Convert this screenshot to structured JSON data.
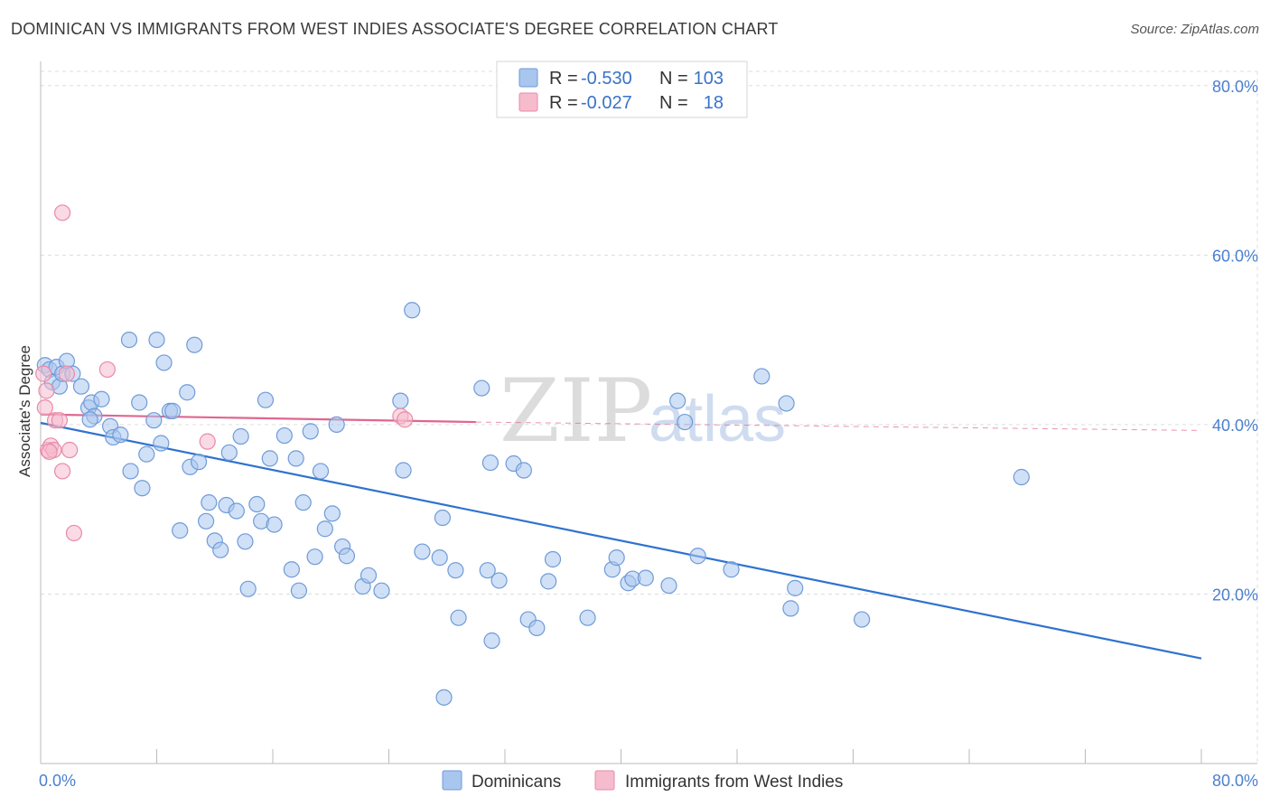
{
  "title": "DOMINICAN VS IMMIGRANTS FROM WEST INDIES ASSOCIATE'S DEGREE CORRELATION CHART",
  "source": "Source: ZipAtlas.com",
  "watermark": {
    "zip": "ZIP",
    "atlas": "atlas"
  },
  "legend": {
    "rows": [
      {
        "r_label": "R =",
        "r_value": "-0.530",
        "n_label": "N =",
        "n_value": "103"
      },
      {
        "r_label": "R =",
        "r_value": "-0.027",
        "n_label": "N =",
        "n_value": "18"
      }
    ]
  },
  "bottom_legend": {
    "series1": "Dominicans",
    "series2": "Immigrants from West Indies"
  },
  "colors": {
    "blue_fill": "#a9c6ee",
    "blue_stroke": "#6f9bd8",
    "blue_line": "#2f72cf",
    "pink_fill": "#f6bcce",
    "pink_stroke": "#e98aa8",
    "pink_line": "#e0668f",
    "grid": "#dddddd",
    "axis_label": "#4a7fd0"
  },
  "chart_data": {
    "type": "scatter",
    "title": "DOMINICAN VS IMMIGRANTS FROM WEST INDIES ASSOCIATE'S DEGREE CORRELATION CHART",
    "xlabel": "",
    "ylabel": "Associate's Degree",
    "xlim": [
      0,
      80
    ],
    "ylim": [
      0,
      82
    ],
    "x_tick_labels": [
      "0.0%",
      "80.0%"
    ],
    "y_ticks": [
      20,
      40,
      60,
      80
    ],
    "y_tick_labels": [
      "20.0%",
      "40.0%",
      "60.0%",
      "80.0%"
    ],
    "grid": true,
    "legend_position": "top-center",
    "series": [
      {
        "name": "Dominicans",
        "r": -0.53,
        "n": 103,
        "trend": {
          "x0": 0,
          "y0": 40.2,
          "x1": 80,
          "y1": 12.4
        },
        "points": [
          [
            0.3,
            47
          ],
          [
            0.6,
            46.5
          ],
          [
            0.8,
            45
          ],
          [
            1.1,
            46.8
          ],
          [
            1.3,
            44.5
          ],
          [
            1.5,
            46
          ],
          [
            1.8,
            47.5
          ],
          [
            2.2,
            46
          ],
          [
            2.8,
            44.5
          ],
          [
            3.3,
            42
          ],
          [
            3.5,
            42.6
          ],
          [
            4.2,
            43
          ],
          [
            3.7,
            41
          ],
          [
            3.4,
            40.6
          ],
          [
            4.8,
            39.8
          ],
          [
            5.0,
            38.5
          ],
          [
            5.5,
            38.8
          ],
          [
            6.1,
            50
          ],
          [
            6.2,
            34.5
          ],
          [
            6.8,
            42.6
          ],
          [
            7.0,
            32.5
          ],
          [
            7.3,
            36.5
          ],
          [
            7.8,
            40.5
          ],
          [
            8.0,
            50
          ],
          [
            8.3,
            37.8
          ],
          [
            8.5,
            47.3
          ],
          [
            8.9,
            41.6
          ],
          [
            9.1,
            41.6
          ],
          [
            9.6,
            27.5
          ],
          [
            10.1,
            43.8
          ],
          [
            10.3,
            35
          ],
          [
            10.6,
            49.4
          ],
          [
            10.9,
            35.6
          ],
          [
            11.4,
            28.6
          ],
          [
            11.6,
            30.8
          ],
          [
            12.0,
            26.3
          ],
          [
            12.4,
            25.2
          ],
          [
            12.8,
            30.5
          ],
          [
            13.0,
            36.7
          ],
          [
            13.5,
            29.8
          ],
          [
            13.8,
            38.6
          ],
          [
            14.1,
            26.2
          ],
          [
            14.3,
            20.6
          ],
          [
            14.9,
            30.6
          ],
          [
            15.2,
            28.6
          ],
          [
            15.5,
            42.9
          ],
          [
            15.8,
            36
          ],
          [
            16.1,
            28.2
          ],
          [
            16.8,
            38.7
          ],
          [
            17.3,
            22.9
          ],
          [
            17.6,
            36
          ],
          [
            17.8,
            20.4
          ],
          [
            18.1,
            30.8
          ],
          [
            18.6,
            39.2
          ],
          [
            18.9,
            24.4
          ],
          [
            19.3,
            34.5
          ],
          [
            19.6,
            27.7
          ],
          [
            20.1,
            29.5
          ],
          [
            20.4,
            40
          ],
          [
            20.8,
            25.6
          ],
          [
            21.1,
            24.5
          ],
          [
            22.2,
            20.9
          ],
          [
            22.6,
            22.2
          ],
          [
            23.5,
            20.4
          ],
          [
            24.8,
            42.8
          ],
          [
            25.0,
            34.6
          ],
          [
            25.6,
            53.5
          ],
          [
            26.3,
            25
          ],
          [
            27.5,
            24.3
          ],
          [
            27.7,
            29
          ],
          [
            28.6,
            22.8
          ],
          [
            28.8,
            17.2
          ],
          [
            30.4,
            44.3
          ],
          [
            30.8,
            22.8
          ],
          [
            31.0,
            35.5
          ],
          [
            31.1,
            14.5
          ],
          [
            31.6,
            21.6
          ],
          [
            32.6,
            35.4
          ],
          [
            33.3,
            34.6
          ],
          [
            33.6,
            17
          ],
          [
            34.2,
            16
          ],
          [
            35.0,
            21.5
          ],
          [
            35.3,
            24.1
          ],
          [
            37.7,
            17.2
          ],
          [
            39.4,
            22.9
          ],
          [
            39.7,
            24.3
          ],
          [
            40.5,
            21.3
          ],
          [
            40.8,
            21.8
          ],
          [
            41.7,
            21.9
          ],
          [
            43.3,
            21
          ],
          [
            43.9,
            42.8
          ],
          [
            44.4,
            40.3
          ],
          [
            45.3,
            24.5
          ],
          [
            47.6,
            22.9
          ],
          [
            49.7,
            45.7
          ],
          [
            51.4,
            42.5
          ],
          [
            51.7,
            18.3
          ],
          [
            52.0,
            20.7
          ],
          [
            56.6,
            17
          ],
          [
            67.6,
            33.8
          ],
          [
            27.8,
            7.8
          ]
        ]
      },
      {
        "name": "Immigrants from West Indies",
        "r": -0.027,
        "n": 18,
        "trend": {
          "x0": 0,
          "y0": 41.2,
          "x1": 30,
          "y1": 40.3,
          "dashed_to_x": 80,
          "dashed_to_y": 39.3
        },
        "points": [
          [
            0.2,
            46
          ],
          [
            0.3,
            42
          ],
          [
            0.4,
            44
          ],
          [
            0.5,
            37
          ],
          [
            0.7,
            37.5
          ],
          [
            0.9,
            37
          ],
          [
            1.0,
            40.5
          ],
          [
            1.3,
            40.5
          ],
          [
            1.5,
            34.5
          ],
          [
            1.5,
            65
          ],
          [
            1.8,
            46
          ],
          [
            2.0,
            37
          ],
          [
            2.3,
            27.2
          ],
          [
            4.6,
            46.5
          ],
          [
            11.5,
            38
          ],
          [
            24.8,
            41
          ],
          [
            25.1,
            40.6
          ],
          [
            0.6,
            36.8
          ]
        ]
      }
    ]
  }
}
